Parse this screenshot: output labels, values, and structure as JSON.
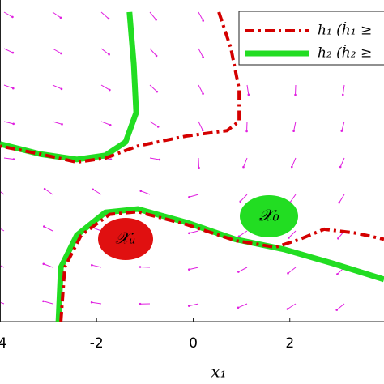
{
  "chart_data": {
    "type": "line",
    "x_label": "x₁",
    "xlim": [
      -4,
      3.95
    ],
    "ylim": [
      0,
      4.8
    ],
    "xticks": [
      -4,
      -2,
      0,
      2
    ],
    "series": [
      {
        "name": "h₁ (ḣ₁ ≥",
        "color": "#d40000",
        "style": "dashdot",
        "x": [
          0.53,
          0.78,
          0.95,
          0.95,
          0.7,
          -0.14,
          -1.15,
          -1.82,
          -2.41,
          -3.16,
          -4,
          null,
          -2.74,
          -2.66,
          -2.32,
          -1.73,
          -1.15,
          -0.14,
          0.87,
          1.7,
          2.21,
          2.71,
          3.38,
          3.95
        ],
        "values": [
          4.62,
          4.08,
          3.47,
          2.99,
          2.85,
          2.77,
          2.62,
          2.44,
          2.38,
          2.5,
          2.62,
          null,
          0,
          0.81,
          1.29,
          1.6,
          1.64,
          1.45,
          1.21,
          1.11,
          1.23,
          1.38,
          1.32,
          1.23
        ]
      },
      {
        "name": "h₂ (ḣ₂ ≥",
        "color": "#22dd22",
        "style": "solid",
        "x": [
          -1.32,
          -1.23,
          -1.18,
          -1.4,
          -1.82,
          -2.41,
          -3.16,
          -4,
          null,
          -2.79,
          -2.74,
          -2.41,
          -1.82,
          -1.15,
          -0.14,
          0.87,
          1.87,
          2.88,
          3.95
        ],
        "values": [
          4.62,
          3.84,
          3.12,
          2.68,
          2.48,
          2.42,
          2.5,
          2.65,
          null,
          0,
          0.81,
          1.29,
          1.63,
          1.68,
          1.48,
          1.23,
          1.08,
          0.87,
          0.63
        ]
      }
    ],
    "regions": [
      {
        "label": "𝒳ᵤ",
        "color": "#e01010"
      },
      {
        "label": "𝒳₀",
        "color": "#22dd22"
      }
    ]
  }
}
